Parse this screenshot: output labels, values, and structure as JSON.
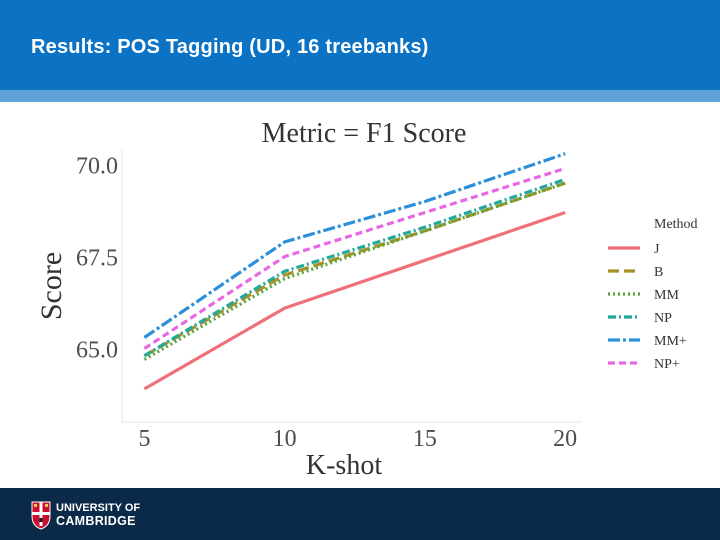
{
  "slide": {
    "title": "Results: POS Tagging (UD, 16 treebanks)"
  },
  "footer": {
    "logo_line1": "UNIVERSITY OF",
    "logo_line2": "CAMBRIDGE"
  },
  "colors": {
    "header": "#0b72c4",
    "footer": "#0b2a4a"
  },
  "chart_data": {
    "type": "line",
    "title": "Metric = F1 Score",
    "xlabel": "K-shot",
    "ylabel": "Score",
    "x": [
      5,
      10,
      15,
      20
    ],
    "x_ticks": [
      "5",
      "10",
      "15",
      "20"
    ],
    "y_ticks": [
      65.0,
      67.5,
      70.0
    ],
    "y_tick_labels": [
      "65.0",
      "67.5",
      "70.0"
    ],
    "ylim": [
      63.0,
      70.4
    ],
    "xlim": [
      4.2,
      20.6
    ],
    "grid": false,
    "legend_title": "Method",
    "legend_position": "right",
    "series": [
      {
        "name": "J",
        "color": "#ef7079",
        "dash": "solid",
        "values": [
          63.9,
          66.1,
          67.4,
          68.7
        ]
      },
      {
        "name": "B",
        "color": "#a69228",
        "dash": "long-dash",
        "values": [
          64.8,
          67.0,
          68.2,
          69.5
        ]
      },
      {
        "name": "MM",
        "color": "#5aa33b",
        "dash": "dotted",
        "values": [
          64.7,
          66.9,
          68.2,
          69.5
        ]
      },
      {
        "name": "NP",
        "color": "#22a89c",
        "dash": "dash-dot",
        "values": [
          64.8,
          67.1,
          68.3,
          69.6
        ]
      },
      {
        "name": "MM+",
        "color": "#2b8fd9",
        "dash": "long-dash-dot",
        "values": [
          65.3,
          67.9,
          69.0,
          70.3
        ]
      },
      {
        "name": "NP+",
        "color": "#e767e5",
        "dash": "dashed",
        "values": [
          65.0,
          67.5,
          68.7,
          69.9
        ]
      }
    ]
  }
}
